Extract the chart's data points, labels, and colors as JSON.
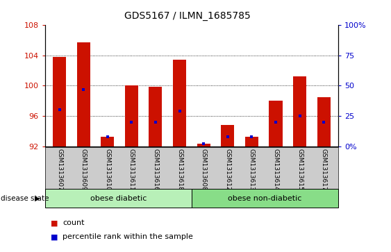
{
  "title": "GDS5167 / ILMN_1685785",
  "samples": [
    "GSM1313607",
    "GSM1313609",
    "GSM1313610",
    "GSM1313611",
    "GSM1313616",
    "GSM1313618",
    "GSM1313608",
    "GSM1313612",
    "GSM1313613",
    "GSM1313614",
    "GSM1313615",
    "GSM1313617"
  ],
  "count_values": [
    103.8,
    105.7,
    93.2,
    100.0,
    99.9,
    103.4,
    92.3,
    94.8,
    93.2,
    98.0,
    101.2,
    98.5
  ],
  "percentile_values": [
    30,
    47,
    8,
    20,
    20,
    29,
    2,
    8,
    8,
    20,
    25,
    20
  ],
  "ymin": 92,
  "ymax": 108,
  "yticks": [
    92,
    96,
    100,
    104,
    108
  ],
  "pct_min": 0,
  "pct_max": 100,
  "pct_ticks": [
    0,
    25,
    50,
    75,
    100
  ],
  "pct_tick_labels": [
    "0%",
    "25",
    "50",
    "75",
    "100%"
  ],
  "bar_color": "#cc1100",
  "blue_color": "#0000cc",
  "group1_label": "obese diabetic",
  "group2_label": "obese non-diabetic",
  "group1_count": 6,
  "group2_count": 6,
  "group_light_green": "#b8f0b8",
  "group_dark_green": "#88dd88",
  "disease_label": "disease state",
  "legend_count": "count",
  "legend_pct": "percentile rank within the sample",
  "tick_color_left": "#cc1100",
  "tick_color_right": "#0000cc",
  "bar_width": 0.55,
  "label_bg_color": "#cccccc",
  "fig_bg": "#ffffff"
}
